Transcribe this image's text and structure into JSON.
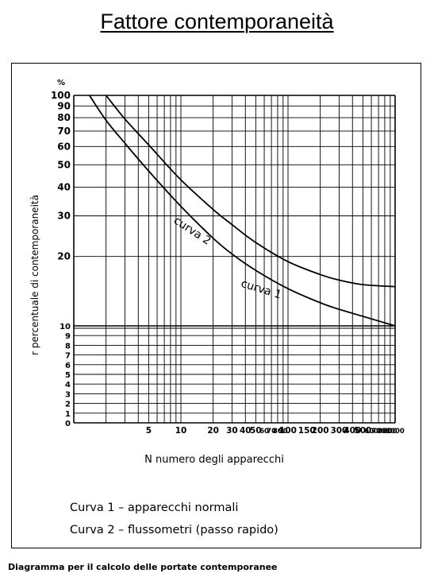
{
  "page": {
    "title": "Fattore contemporaneità",
    "caption": "Diagramma per il calcolo delle portate contemporanee"
  },
  "chart_data": {
    "type": "line",
    "xscale": "log",
    "yscale": "mixed: 0–10 linear, 10–100 log",
    "xlabel": "N numero degli apparecchi",
    "ylabel": "r percentuale di contemporaneità",
    "yunit": "%",
    "xlim": [
      1,
      1000
    ],
    "ylim": [
      0,
      100
    ],
    "x_tick_labels": [
      "5",
      "10",
      "20",
      "30",
      "40",
      "50",
      "60",
      "70",
      "80",
      "90",
      "100",
      "150",
      "200",
      "300",
      "400",
      "500",
      "600",
      "700",
      "800",
      "900",
      "1000"
    ],
    "y_tick_labels": [
      "0",
      "1",
      "2",
      "3",
      "4",
      "5",
      "6",
      "7",
      "8",
      "9",
      "10",
      "20",
      "30",
      "40",
      "50",
      "60",
      "70",
      "80",
      "90",
      "100"
    ],
    "grid": true,
    "series": [
      {
        "name": "curva 1",
        "legend": "Curva 1 – apparecchi normali",
        "x": [
          1.4,
          2,
          3,
          5,
          10,
          20,
          30,
          50,
          100,
          200,
          300,
          500,
          1000
        ],
        "y": [
          100,
          78,
          62,
          47,
          33,
          24,
          20.5,
          17.4,
          14.5,
          12.6,
          11.8,
          11.0,
          10.0
        ]
      },
      {
        "name": "curva 2",
        "legend": "Curva 2 – flussometri (passo rapido)",
        "x": [
          2,
          3,
          5,
          10,
          20,
          30,
          50,
          100,
          200,
          300,
          500,
          1000
        ],
        "y": [
          100,
          79,
          61,
          43,
          32,
          27.5,
          23,
          19,
          16.7,
          15.8,
          15.1,
          14.8
        ]
      }
    ]
  }
}
